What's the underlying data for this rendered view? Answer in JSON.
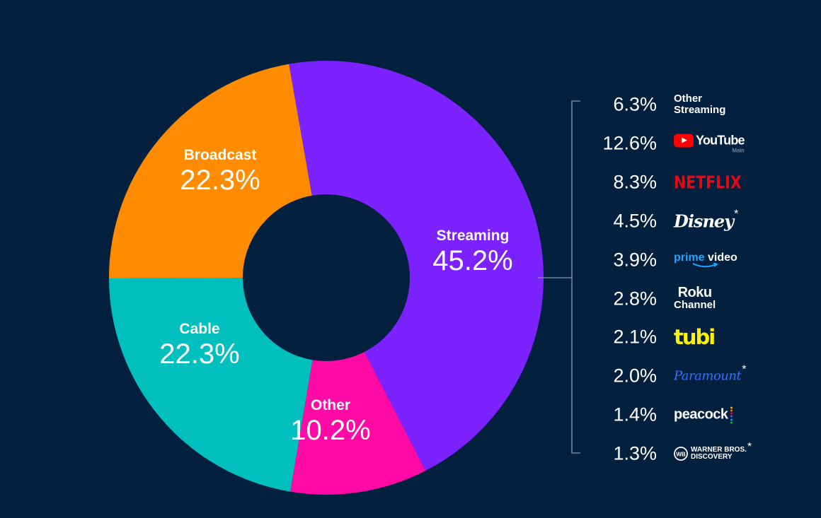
{
  "chart_data": {
    "type": "pie",
    "style": "donut",
    "slices": [
      {
        "label": "Streaming",
        "value": 45.2,
        "value_label": "45.2%",
        "color": "#7b22ff"
      },
      {
        "label": "Other",
        "value": 10.2,
        "value_label": "10.2%",
        "color": "#ff0aa4"
      },
      {
        "label": "Cable",
        "value": 22.3,
        "value_label": "22.3%",
        "color": "#00bfbc"
      },
      {
        "label": "Broadcast",
        "value": 22.3,
        "value_label": "22.3%",
        "color": "#ff8c00"
      }
    ],
    "breakdown_of": "Streaming",
    "breakdown": [
      {
        "value": 6.3,
        "value_label": "6.3%",
        "brand": "Other Streaming",
        "brand_lines": [
          "Other",
          "Streaming"
        ],
        "icon": "other-streaming-label"
      },
      {
        "value": 12.6,
        "value_label": "12.6%",
        "brand": "YouTube",
        "sub": "Main",
        "icon": "youtube-logo"
      },
      {
        "value": 8.3,
        "value_label": "8.3%",
        "brand": "NETFLIX",
        "icon": "netflix-logo"
      },
      {
        "value": 4.5,
        "value_label": "4.5%",
        "brand": "Disney",
        "asterisk": "*",
        "icon": "disney-logo"
      },
      {
        "value": 3.9,
        "value_label": "3.9%",
        "brand": "prime video",
        "brand_parts": [
          "prime",
          " video"
        ],
        "icon": "prime-video-logo"
      },
      {
        "value": 2.8,
        "value_label": "2.8%",
        "brand": "Roku Channel",
        "brand_lines": [
          "Roku",
          "Channel"
        ],
        "icon": "roku-channel-logo"
      },
      {
        "value": 2.1,
        "value_label": "2.1%",
        "brand": "tubi",
        "icon": "tubi-logo"
      },
      {
        "value": 2.0,
        "value_label": "2.0%",
        "brand": "Paramount",
        "asterisk": "*",
        "icon": "paramount-logo"
      },
      {
        "value": 1.4,
        "value_label": "1.4%",
        "brand": "peacock",
        "icon": "peacock-logo"
      },
      {
        "value": 1.3,
        "value_label": "1.3%",
        "brand": "Warner Bros. Discovery",
        "brand_lines": [
          "WARNER BROS.",
          "DISCOVERY"
        ],
        "asterisk": "*",
        "icon": "warner-bros-discovery-logo"
      }
    ]
  },
  "colors": {
    "background": "#04203f",
    "bracket": "#8a96a8"
  }
}
